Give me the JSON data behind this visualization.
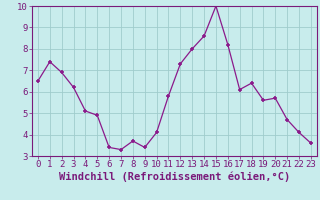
{
  "x": [
    0,
    1,
    2,
    3,
    4,
    5,
    6,
    7,
    8,
    9,
    10,
    11,
    12,
    13,
    14,
    15,
    16,
    17,
    18,
    19,
    20,
    21,
    22,
    23
  ],
  "y": [
    6.5,
    7.4,
    6.9,
    6.2,
    5.1,
    4.9,
    3.4,
    3.3,
    3.7,
    3.4,
    4.1,
    5.8,
    7.3,
    8.0,
    8.6,
    10.0,
    8.2,
    6.1,
    6.4,
    5.6,
    5.7,
    4.7,
    4.1,
    3.6
  ],
  "line_color": "#8b1a8b",
  "marker": "+",
  "bg_color": "#c8ecec",
  "grid_color": "#a0cccc",
  "xlabel": "Windchill (Refroidissement éolien,°C)",
  "xlabel_fontsize": 7.5,
  "tick_fontsize": 6.5,
  "ylim": [
    3,
    10
  ],
  "xlim": [
    -0.5,
    23.5
  ],
  "yticks": [
    3,
    4,
    5,
    6,
    7,
    8,
    9,
    10
  ],
  "xticks": [
    0,
    1,
    2,
    3,
    4,
    5,
    6,
    7,
    8,
    9,
    10,
    11,
    12,
    13,
    14,
    15,
    16,
    17,
    18,
    19,
    20,
    21,
    22,
    23
  ],
  "spine_color": "#7a1a7a",
  "axis_bg_color": "#c8ecec"
}
